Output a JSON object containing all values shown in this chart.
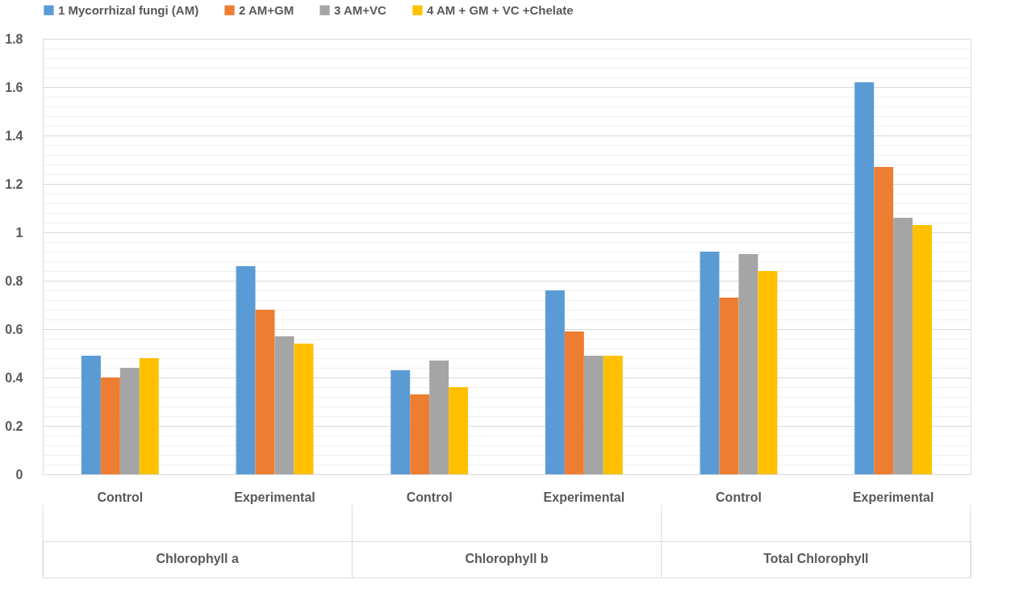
{
  "chart_data": {
    "type": "bar",
    "categories": [
      "Control",
      "Experimental",
      "Control",
      "Experimental",
      "Control",
      "Experimental"
    ],
    "series": [
      {
        "name": "1 Mycorrhizal fungi (AM)",
        "color": "#5b9bd5",
        "values": [
          0.49,
          0.86,
          0.43,
          0.76,
          0.92,
          1.62
        ]
      },
      {
        "name": "2 AM+GM",
        "color": "#ed7d31",
        "values": [
          0.4,
          0.68,
          0.33,
          0.59,
          0.73,
          1.27
        ]
      },
      {
        "name": "3 AM+VC",
        "color": "#a5a5a5",
        "values": [
          0.44,
          0.57,
          0.47,
          0.49,
          0.91,
          1.06
        ]
      },
      {
        "name": "4 AM + GM + VC +Chelate",
        "color": "#ffc000",
        "values": [
          0.48,
          0.54,
          0.36,
          0.49,
          0.84,
          1.03
        ]
      }
    ],
    "annotations": [
      "Chlorophyll a",
      "Chlorophyll b",
      "Total Chlorophyll"
    ],
    "ylim": [
      0,
      1.8
    ],
    "yticks": [
      0,
      {
        "value": 0.04,
        "label": null
      },
      {
        "value": 0.08,
        "label": null
      },
      {
        "value": 0.12,
        "label": null
      },
      {
        "value": 0.16,
        "label": null
      },
      0.2,
      {
        "value": 0.24,
        "label": null
      },
      {
        "value": 0.28,
        "label": null
      },
      {
        "value": 0.32,
        "label": null
      },
      {
        "value": 0.36,
        "label": null
      },
      0.4,
      {
        "value": 0.44,
        "label": null
      },
      {
        "value": 0.48,
        "label": null
      },
      {
        "value": 0.52,
        "label": null
      },
      {
        "value": 0.56,
        "label": null
      },
      0.6,
      {
        "value": 0.64,
        "label": null
      },
      {
        "value": 0.68,
        "label": null
      },
      {
        "value": 0.72,
        "label": null
      },
      {
        "value": 0.76,
        "label": null
      },
      0.8,
      {
        "value": 0.84,
        "label": null
      },
      {
        "value": 0.88,
        "label": null
      },
      {
        "value": 0.92,
        "label": null
      },
      {
        "value": 0.96,
        "label": null
      },
      1,
      {
        "value": 1.04,
        "label": null
      },
      {
        "value": 1.08,
        "label": null
      },
      {
        "value": 1.12,
        "label": null
      },
      {
        "value": 1.16,
        "label": null
      },
      1.2,
      {
        "value": 1.24,
        "label": null
      },
      {
        "value": 1.28,
        "label": null
      },
      {
        "value": 1.32,
        "label": null
      },
      {
        "value": 1.36,
        "label": null
      },
      1.4,
      {
        "value": 1.44,
        "label": null
      },
      {
        "value": 1.48,
        "label": null
      },
      {
        "value": 1.52,
        "label": null
      },
      {
        "value": 1.56,
        "label": null
      },
      1.6,
      {
        "value": 1.64,
        "label": null
      },
      {
        "value": 1.68,
        "label": null
      },
      {
        "value": 1.72,
        "label": null
      },
      {
        "value": 1.76,
        "label": null
      },
      1.8
    ],
    "grid": "y",
    "legend": "top"
  }
}
